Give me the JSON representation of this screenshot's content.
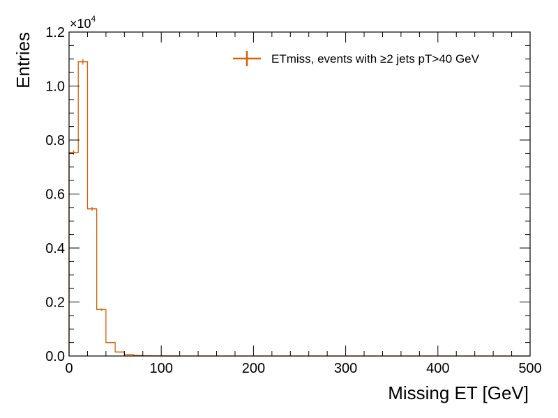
{
  "chart_data": {
    "type": "histogram",
    "title": "",
    "xlabel": "Missing ET [GeV]",
    "ylabel": "Entries",
    "xlim": [
      0,
      500
    ],
    "ylim": [
      0,
      12000
    ],
    "y_multiplier": {
      "base": "×10",
      "exponent": "4"
    },
    "x_ticks": [
      0,
      100,
      200,
      300,
      400,
      500
    ],
    "x_tick_labels": [
      "0",
      "100",
      "200",
      "300",
      "400",
      "500"
    ],
    "y_ticks": [
      0,
      2000,
      4000,
      6000,
      8000,
      10000,
      12000
    ],
    "y_tick_labels": [
      "0.0",
      "0.2",
      "0.4",
      "0.6",
      "0.8",
      "1.0",
      "1.2"
    ],
    "grid": false,
    "legend_position": "top-right",
    "color": "#d95f02",
    "series": [
      {
        "name": "ETmiss, events with ≥2 jets pT>40 GeV",
        "bin_edges": [
          0,
          10,
          20,
          30,
          40,
          50,
          60,
          70,
          80,
          90,
          100,
          110,
          120,
          130,
          140,
          150,
          160,
          170,
          180,
          190,
          200,
          210,
          220,
          230,
          240,
          250,
          260,
          270,
          280,
          290,
          300,
          310,
          320,
          330,
          340,
          350,
          360,
          370,
          380,
          390,
          400,
          410,
          420,
          430,
          440,
          450,
          460,
          470,
          480,
          490,
          500
        ],
        "counts": [
          7540,
          10900,
          5450,
          1720,
          500,
          150,
          50,
          20,
          8,
          3,
          1,
          1,
          0,
          0,
          0,
          0,
          0,
          0,
          0,
          0,
          0,
          0,
          0,
          0,
          0,
          0,
          0,
          0,
          0,
          0,
          0,
          0,
          0,
          0,
          0,
          0,
          0,
          0,
          0,
          0,
          0,
          0,
          0,
          0,
          0,
          0,
          0,
          0,
          0,
          0
        ]
      }
    ]
  }
}
